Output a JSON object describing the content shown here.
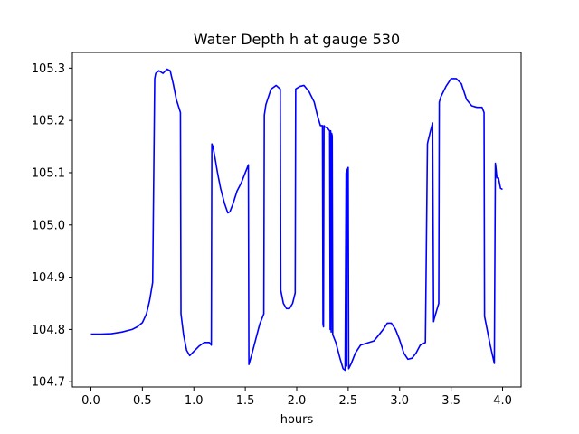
{
  "chart_data": {
    "type": "line",
    "title": "Water Depth h at gauge 530",
    "xlabel": "hours",
    "ylabel": "",
    "xlim": [
      -0.18,
      4.18
    ],
    "ylim": [
      104.69,
      105.33
    ],
    "xticks": [
      0.0,
      0.5,
      1.0,
      1.5,
      2.0,
      2.5,
      3.0,
      3.5,
      4.0
    ],
    "xtick_labels": [
      "0.0",
      "0.5",
      "1.0",
      "1.5",
      "2.0",
      "2.5",
      "3.0",
      "3.5",
      "4.0"
    ],
    "yticks": [
      104.7,
      104.8,
      104.9,
      105.0,
      105.1,
      105.2,
      105.3
    ],
    "ytick_labels": [
      "104.7",
      "104.8",
      "104.9",
      "105.0",
      "105.1",
      "105.2",
      "105.3"
    ],
    "grid": false,
    "series": [
      {
        "color": "#0000ff",
        "x": [
          0.0,
          0.1,
          0.2,
          0.3,
          0.4,
          0.45,
          0.5,
          0.54,
          0.57,
          0.6,
          0.62,
          0.625,
          0.63,
          0.66,
          0.7,
          0.74,
          0.77,
          0.8,
          0.83,
          0.87,
          0.875,
          0.9,
          0.93,
          0.96,
          1.0,
          1.05,
          1.1,
          1.15,
          1.17,
          1.175,
          1.185,
          1.2,
          1.23,
          1.26,
          1.3,
          1.33,
          1.35,
          1.38,
          1.42,
          1.46,
          1.5,
          1.53,
          1.535,
          1.56,
          1.6,
          1.64,
          1.68,
          1.685,
          1.7,
          1.75,
          1.8,
          1.84,
          1.845,
          1.87,
          1.9,
          1.93,
          1.96,
          1.985,
          1.99,
          2.03,
          2.07,
          2.12,
          2.17,
          2.2,
          2.23,
          2.25,
          2.255,
          2.26,
          2.265,
          2.27,
          2.3,
          2.32,
          2.325,
          2.33,
          2.335,
          2.34,
          2.345,
          2.35,
          2.38,
          2.42,
          2.45,
          2.47,
          2.48,
          2.485,
          2.49,
          2.5,
          2.505,
          2.53,
          2.57,
          2.62,
          2.7,
          2.75,
          2.8,
          2.84,
          2.88,
          2.92,
          2.96,
          3.0,
          3.04,
          3.08,
          3.12,
          3.16,
          3.2,
          3.25,
          3.27,
          3.275,
          3.3,
          3.32,
          3.33,
          3.335,
          3.38,
          3.385,
          3.4,
          3.45,
          3.5,
          3.55,
          3.6,
          3.65,
          3.7,
          3.75,
          3.8,
          3.82,
          3.825,
          3.85,
          3.88,
          3.92,
          3.93,
          3.935,
          3.945,
          3.96,
          3.98,
          4.0
        ],
        "y": [
          104.791,
          104.791,
          104.792,
          104.795,
          104.8,
          104.805,
          104.813,
          104.83,
          104.855,
          104.89,
          105.28,
          105.285,
          105.29,
          105.295,
          105.29,
          105.298,
          105.295,
          105.27,
          105.24,
          105.215,
          104.83,
          104.79,
          104.76,
          104.75,
          104.758,
          104.768,
          104.775,
          104.775,
          104.77,
          105.155,
          105.15,
          105.135,
          105.1,
          105.07,
          105.04,
          105.023,
          105.025,
          105.04,
          105.065,
          105.08,
          105.1,
          105.115,
          104.733,
          104.75,
          104.78,
          104.81,
          104.83,
          105.21,
          105.23,
          105.26,
          105.267,
          105.26,
          104.875,
          104.85,
          104.84,
          104.84,
          104.85,
          104.87,
          105.26,
          105.265,
          105.267,
          105.255,
          105.235,
          105.21,
          105.19,
          105.19,
          104.81,
          104.805,
          105.19,
          105.188,
          105.185,
          105.18,
          104.8,
          105.18,
          104.795,
          105.175,
          105.17,
          104.79,
          104.775,
          104.745,
          104.725,
          104.722,
          105.1,
          104.73,
          105.105,
          105.11,
          104.725,
          104.735,
          104.755,
          104.77,
          104.775,
          104.778,
          104.79,
          104.8,
          104.812,
          104.812,
          104.8,
          104.78,
          104.755,
          104.743,
          104.745,
          104.755,
          104.77,
          104.775,
          105.155,
          105.16,
          105.18,
          105.195,
          104.815,
          104.82,
          104.85,
          105.235,
          105.245,
          105.265,
          105.28,
          105.28,
          105.27,
          105.24,
          105.228,
          105.225,
          105.225,
          105.215,
          104.825,
          104.8,
          104.77,
          104.735,
          105.118,
          105.11,
          105.09,
          105.09,
          105.07,
          105.068
        ]
      }
    ]
  }
}
